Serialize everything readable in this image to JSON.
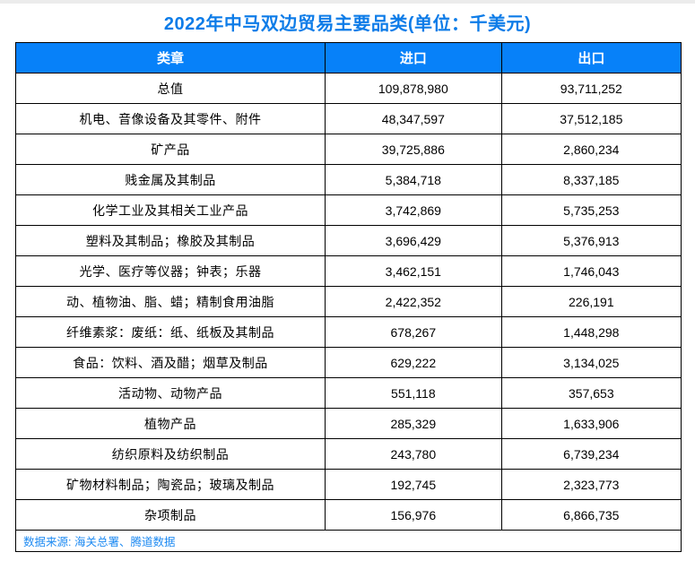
{
  "title": "2022年中马双边贸易主要品类(单位：千美元)",
  "source": "数据来源: 海关总署、腾道数据",
  "colors": {
    "accent_blue": "#0781f9",
    "title_blue": "#0d7ce8",
    "footer_blue": "#1d8af2",
    "header_text": "#ffffff",
    "body_text": "#000000",
    "border": "#000000",
    "top_strip": "#ececec"
  },
  "chart_data": {
    "type": "table",
    "title": "2022年中马双边贸易主要品类(单位：千美元)",
    "unit": "千美元",
    "columns": [
      "类章",
      "进口",
      "出口"
    ],
    "rows": [
      {
        "category": "总值",
        "import": "109,878,980",
        "export": "93,711,252"
      },
      {
        "category": "机电、音像设备及其零件、附件",
        "import": "48,347,597",
        "export": "37,512,185"
      },
      {
        "category": "矿产品",
        "import": "39,725,886",
        "export": "2,860,234"
      },
      {
        "category": "贱金属及其制品",
        "import": "5,384,718",
        "export": "8,337,185"
      },
      {
        "category": "化学工业及其相关工业产品",
        "import": "3,742,869",
        "export": "5,735,253"
      },
      {
        "category": "塑料及其制品；橡胶及其制品",
        "import": "3,696,429",
        "export": "5,376,913"
      },
      {
        "category": "光学、医疗等仪器；钟表；乐器",
        "import": "3,462,151",
        "export": "1,746,043"
      },
      {
        "category": "动、植物油、脂、蜡；精制食用油脂",
        "import": "2,422,352",
        "export": "226,191"
      },
      {
        "category": "纤维素浆：废纸：纸、纸板及其制品",
        "import": "678,267",
        "export": "1,448,298"
      },
      {
        "category": "食品：饮料、酒及醋；烟草及制品",
        "import": "629,222",
        "export": "3,134,025"
      },
      {
        "category": "活动物、动物产品",
        "import": "551,118",
        "export": "357,653"
      },
      {
        "category": "植物产品",
        "import": "285,329",
        "export": "1,633,906"
      },
      {
        "category": "纺织原料及纺织制品",
        "import": "243,780",
        "export": "6,739,234"
      },
      {
        "category": "矿物材料制品；陶瓷品；玻璃及制品",
        "import": "192,745",
        "export": "2,323,773"
      },
      {
        "category": "杂项制品",
        "import": "156,976",
        "export": "6,866,735"
      }
    ]
  }
}
